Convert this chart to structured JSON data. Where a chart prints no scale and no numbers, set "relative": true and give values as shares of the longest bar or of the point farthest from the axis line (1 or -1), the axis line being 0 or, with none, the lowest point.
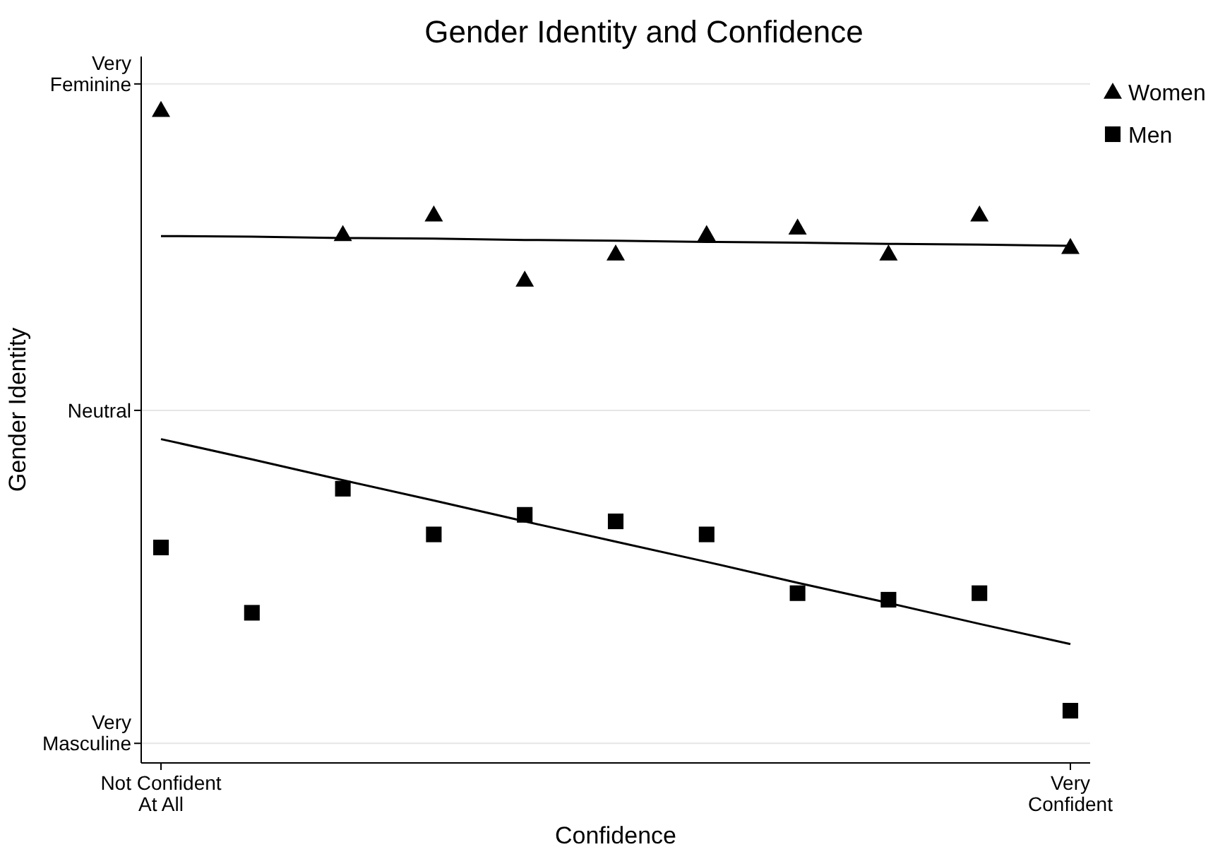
{
  "chart_data": {
    "type": "scatter",
    "title": "Gender Identity and Confidence",
    "xlabel": "Confidence",
    "ylabel": "Gender Identity",
    "categories": [
      "Not Confident At All",
      null,
      null,
      null,
      null,
      null,
      null,
      null,
      null,
      null,
      "Very Confident"
    ],
    "relative": true,
    "ref_lines": [
      {
        "axis": "y",
        "value": 1.04,
        "label": "Very\nFeminine",
        "color": "#e6e6e6"
      },
      {
        "axis": "y",
        "value": 0.54,
        "label": "Neutral",
        "color": "#e6e6e6"
      },
      {
        "axis": "y",
        "value": 0.03,
        "label": "Very\nMasculine",
        "color": "#e6e6e6"
      }
    ],
    "legend": "top right",
    "series": [
      {
        "name": "Women",
        "color": "#000000",
        "marker": "triangle",
        "values": [
          1,
          null,
          0.81,
          0.84,
          0.74,
          0.78,
          0.81,
          0.82,
          0.78,
          0.84,
          0.79
        ]
      },
      {
        "name": "Men",
        "color": "#000000",
        "marker": "square",
        "values": [
          0.33,
          0.23,
          0.42,
          0.35,
          0.38,
          0.37,
          0.35,
          0.26,
          0.25,
          0.26,
          0.08
        ]
      },
      {
        "type": "line",
        "color": "#000000",
        "values": [
          0.807,
          0.806,
          0.804,
          0.803,
          0.801,
          0.8,
          0.798,
          0.797,
          0.795,
          0.794,
          0.792
        ]
      },
      {
        "type": "line",
        "color": "#000000",
        "values": [
          0.496,
          0.465,
          0.433,
          0.402,
          0.37,
          0.339,
          0.308,
          0.276,
          0.245,
          0.213,
          0.182
        ]
      }
    ]
  }
}
